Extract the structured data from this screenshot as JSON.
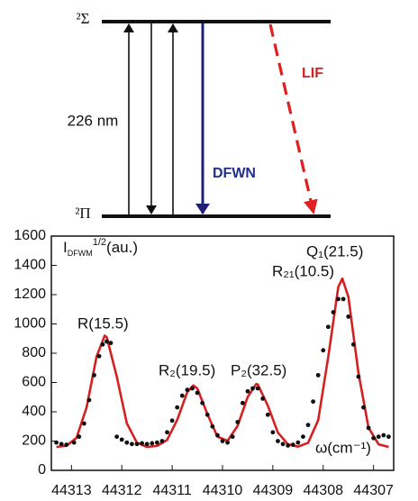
{
  "diagram": {
    "upper_level": "²Σ",
    "lower_level": "²Π",
    "wavelength": "226 nm",
    "dfwm": "DFWN",
    "lif": "LIF"
  },
  "chart_data": {
    "type": "line",
    "y_label": {
      "main": "I",
      "sub": "DFWM",
      "sup": "1/2",
      "unit": "(au.)"
    },
    "annotations": [
      "R(15.5)",
      "R₂(19.5)",
      "P₂(32.5)",
      "Q₁(21.5)",
      "R₂₁(10.5)",
      "ω(cm⁻¹)"
    ],
    "xlim": [
      44313.4,
      44306.6
    ],
    "xticks": [
      44313,
      44312,
      44311,
      44310,
      44309,
      44308,
      44307
    ],
    "ylim": [
      0,
      1600
    ],
    "yticks": [
      0,
      200,
      400,
      600,
      800,
      1000,
      1200,
      1400,
      1600
    ],
    "series": [
      {
        "mode": "line",
        "color": "#d42020",
        "x": [
          44313.3,
          44313.1,
          44312.9,
          44312.7,
          44312.5,
          44312.34,
          44312.3,
          44312.1,
          44311.9,
          44311.7,
          44311.5,
          44311.3,
          44311.1,
          44310.9,
          44310.7,
          44310.58,
          44310.5,
          44310.3,
          44310.1,
          44309.9,
          44309.7,
          44309.5,
          44309.33,
          44309.3,
          44309.1,
          44308.9,
          44308.7,
          44308.5,
          44308.3,
          44308.1,
          44307.9,
          44307.7,
          44307.62,
          44307.5,
          44307.3,
          44307.1,
          44306.9,
          44306.7
        ],
        "values": [
          160,
          168,
          222,
          430,
          779,
          920,
          910,
          640,
          321,
          189,
          160,
          167,
          208,
          345,
          534,
          580,
          559,
          384,
          230,
          202,
          304,
          501,
          590,
          587,
          442,
          258,
          178,
          162,
          188,
          342,
          774,
          1253,
          1310,
          1185,
          666,
          292,
          178,
          160
        ]
      },
      {
        "mode": "markers",
        "color": "#111111",
        "x": [
          44313.3,
          44313.2,
          44313.1,
          44312.95,
          44312.85,
          44312.75,
          44312.65,
          44312.55,
          44312.45,
          44312.38,
          44312.3,
          44312.22,
          44312.1,
          44312.0,
          44311.9,
          44311.8,
          44311.7,
          44311.6,
          44311.5,
          44311.4,
          44311.3,
          44311.2,
          44311.1,
          44311.0,
          44310.9,
          44310.8,
          44310.7,
          44310.6,
          44310.5,
          44310.4,
          44310.3,
          44310.2,
          44310.1,
          44310.0,
          44309.9,
          44309.8,
          44309.7,
          44309.6,
          44309.5,
          44309.4,
          44309.3,
          44309.2,
          44309.1,
          44309.0,
          44308.9,
          44308.8,
          44308.7,
          44308.6,
          44308.5,
          44308.4,
          44308.3,
          44308.2,
          44308.1,
          44308.0,
          44307.9,
          44307.8,
          44307.7,
          44307.6,
          44307.5,
          44307.4,
          44307.3,
          44307.2,
          44307.1,
          44307.0,
          44306.9,
          44306.8,
          44306.7
        ],
        "values": [
          190,
          180,
          175,
          190,
          230,
          320,
          480,
          650,
          780,
          860,
          880,
          870,
          230,
          210,
          190,
          180,
          180,
          185,
          180,
          185,
          190,
          200,
          260,
          340,
          430,
          510,
          550,
          560,
          530,
          460,
          380,
          300,
          240,
          200,
          190,
          230,
          330,
          460,
          540,
          560,
          560,
          490,
          380,
          260,
          200,
          180,
          170,
          175,
          190,
          230,
          310,
          470,
          650,
          820,
          980,
          1080,
          1170,
          1170,
          1050,
          860,
          640,
          430,
          290,
          220,
          230,
          240,
          230
        ]
      }
    ]
  }
}
